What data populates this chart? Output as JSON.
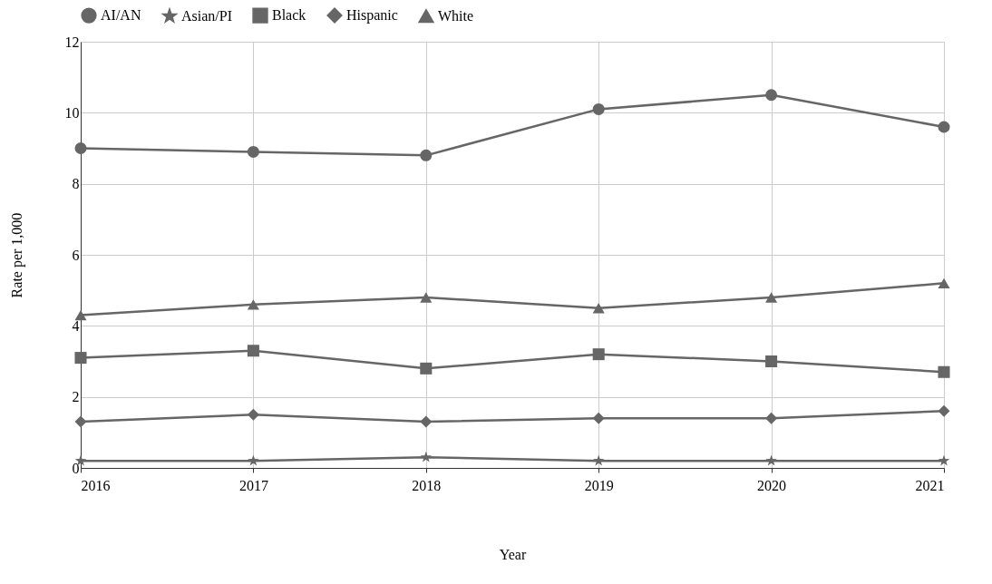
{
  "chart_data": {
    "type": "line",
    "xlabel": "Year",
    "ylabel": "Rate per 1,000",
    "x": [
      2016,
      2017,
      2018,
      2019,
      2020,
      2021
    ],
    "xlim": [
      2016,
      2021
    ],
    "xticks": [
      2016,
      2017,
      2018,
      2019,
      2020,
      2021
    ],
    "ylim": [
      0,
      12
    ],
    "yticks": [
      0,
      2,
      4,
      6,
      8,
      10,
      12
    ],
    "grid": true,
    "legend": "top",
    "line_style": "solid",
    "series": [
      {
        "name": "AI/AN",
        "color": "#666666",
        "marker": "circle",
        "values": [
          9.0,
          8.9,
          8.8,
          10.1,
          10.5,
          9.6
        ]
      },
      {
        "name": "Asian/PI",
        "color": "#666666",
        "marker": "star",
        "values": [
          0.2,
          0.2,
          0.3,
          0.2,
          0.2,
          0.2
        ]
      },
      {
        "name": "Black",
        "color": "#666666",
        "marker": "square",
        "values": [
          3.1,
          3.3,
          2.8,
          3.2,
          3.0,
          2.7
        ]
      },
      {
        "name": "Hispanic",
        "color": "#666666",
        "marker": "diamond",
        "values": [
          1.3,
          1.5,
          1.3,
          1.4,
          1.4,
          1.6
        ]
      },
      {
        "name": "White",
        "color": "#666666",
        "marker": "triangle",
        "values": [
          4.3,
          4.6,
          4.8,
          4.5,
          4.8,
          5.2
        ]
      }
    ]
  }
}
